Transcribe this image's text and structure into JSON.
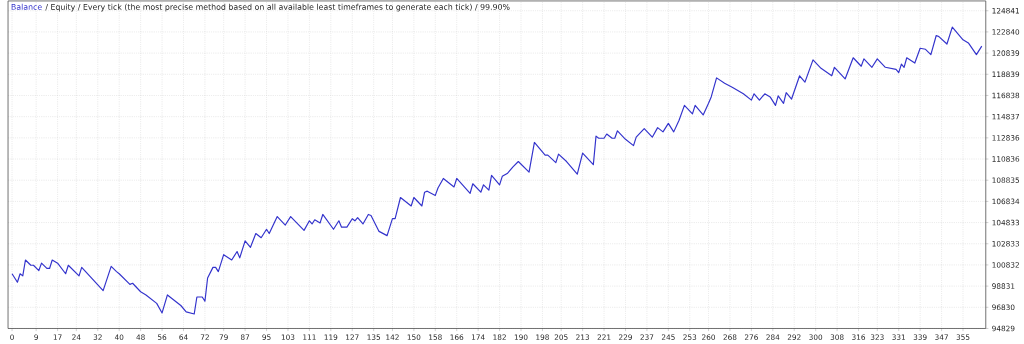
{
  "chart_data": {
    "type": "line",
    "title": "/ Equity / Every tick (the most precise method based on all available least timeframes to generate each tick) / 99.90%",
    "x": [
      0,
      2,
      3,
      4,
      5,
      7,
      8,
      10,
      11,
      13,
      14,
      15,
      17,
      20,
      21,
      25,
      26,
      34,
      37,
      39,
      40,
      44,
      45,
      48,
      50,
      54,
      56,
      58,
      63,
      65,
      68,
      69,
      71,
      72,
      73,
      75,
      76,
      77,
      79,
      82,
      84,
      85,
      87,
      89,
      91,
      93,
      95,
      96,
      99,
      102,
      104,
      109,
      111,
      112,
      113,
      115,
      116,
      120,
      122,
      123,
      125,
      127,
      128,
      129,
      131,
      133,
      134,
      137,
      140,
      142,
      143,
      145,
      149,
      150,
      153,
      154,
      155,
      158,
      159,
      161,
      165,
      166,
      171,
      172,
      175,
      176,
      178,
      179,
      182,
      183,
      185,
      187,
      189,
      193,
      195,
      199,
      200,
      203,
      204,
      207,
      211,
      213,
      217,
      218,
      219,
      221,
      222,
      224,
      225,
      226,
      229,
      232,
      233,
      236,
      239,
      241,
      243,
      245,
      247,
      249,
      251,
      254,
      255,
      258,
      260,
      261,
      263,
      266,
      269,
      273,
      276,
      277,
      279,
      281,
      283,
      285,
      286,
      288,
      289,
      291,
      294,
      296,
      299,
      302,
      306,
      307,
      311,
      314,
      317,
      318,
      321,
      323,
      326,
      330,
      331,
      332,
      333,
      334,
      337,
      339,
      341,
      343,
      345,
      346,
      349,
      351,
      355,
      357,
      360,
      362
    ],
    "series": [
      {
        "name": "Balance",
        "color": "#3333cc",
        "values": [
          100000,
          99200,
          100000,
          99800,
          101300,
          100800,
          100800,
          100300,
          101000,
          100500,
          100500,
          101300,
          101000,
          100000,
          100800,
          99800,
          100600,
          98400,
          100700,
          100200,
          100000,
          99000,
          99100,
          98300,
          98000,
          97200,
          96300,
          98000,
          97000,
          96400,
          96200,
          97800,
          97800,
          97400,
          99600,
          100600,
          100600,
          100200,
          101800,
          101300,
          102100,
          101500,
          103100,
          102500,
          103800,
          103400,
          104200,
          103800,
          105400,
          104600,
          105400,
          104100,
          105000,
          104700,
          105100,
          104800,
          105600,
          104200,
          105000,
          104400,
          104400,
          105200,
          105000,
          105300,
          104700,
          105600,
          105500,
          104000,
          103600,
          105200,
          105200,
          107200,
          106400,
          107200,
          106400,
          107700,
          107800,
          107400,
          108100,
          109000,
          108200,
          109000,
          107600,
          108500,
          107700,
          108400,
          107900,
          109300,
          108400,
          109200,
          109500,
          110100,
          110600,
          109600,
          112400,
          111200,
          111200,
          110500,
          111300,
          110600,
          109400,
          111400,
          110300,
          113000,
          112800,
          112800,
          113200,
          112800,
          112800,
          113500,
          112700,
          112100,
          112900,
          113700,
          112900,
          113800,
          113400,
          114200,
          113400,
          114500,
          115900,
          115100,
          115900,
          115000,
          116100,
          116700,
          118500,
          118000,
          117600,
          117000,
          116400,
          117000,
          116400,
          117000,
          116700,
          115900,
          116800,
          116100,
          117100,
          116500,
          118700,
          118100,
          120200,
          119400,
          118700,
          119500,
          118400,
          120400,
          119600,
          120300,
          119500,
          120300,
          119500,
          119300,
          119000,
          119800,
          119500,
          120400,
          119900,
          121300,
          121200,
          120700,
          122500,
          122400,
          121700,
          123300,
          122100,
          121800,
          120700,
          121500
        ]
      }
    ],
    "xlim": [
      -1.5,
      363.5
    ],
    "ylim": [
      94829,
      125767
    ],
    "xticks": [
      0,
      9,
      17,
      24,
      32,
      40,
      48,
      56,
      64,
      72,
      79,
      87,
      95,
      103,
      111,
      119,
      127,
      135,
      142,
      150,
      158,
      166,
      174,
      182,
      190,
      198,
      205,
      213,
      221,
      229,
      237,
      245,
      253,
      260,
      268,
      276,
      284,
      292,
      300,
      308,
      316,
      323,
      331,
      339,
      347,
      355
    ],
    "yticks": [
      94829,
      96830,
      98831,
      100832,
      102833,
      104833,
      106834,
      108835,
      110836,
      112836,
      114837,
      116838,
      118839,
      120839,
      122840,
      124841
    ],
    "grid": true,
    "legend": "top left",
    "marker": "none",
    "line_style": "solid"
  }
}
